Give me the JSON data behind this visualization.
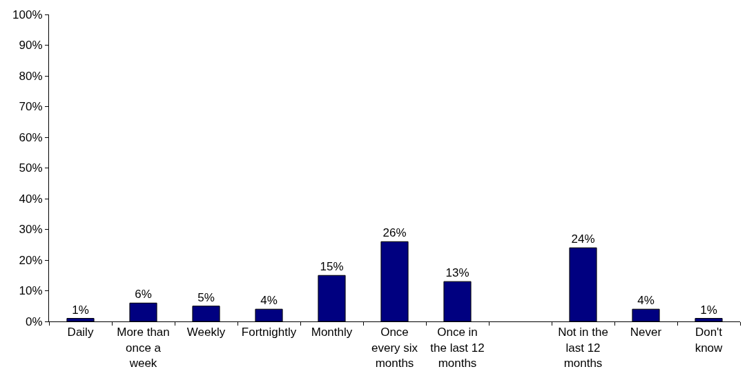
{
  "chart_data": {
    "type": "bar",
    "categories": [
      "Daily",
      "More than once a week",
      "Weekly",
      "Fortnightly",
      "Monthly",
      "Once every six months",
      "Once in the last 12 months",
      null,
      "Not in the last 12 months",
      "Never",
      "Don't know"
    ],
    "values": [
      1,
      6,
      5,
      4,
      15,
      26,
      13,
      null,
      24,
      4,
      1
    ],
    "value_labels": [
      "1%",
      "6%",
      "5%",
      "4%",
      "15%",
      "26%",
      "13%",
      null,
      "24%",
      "4%",
      "1%"
    ],
    "color": "#000080",
    "ylim": [
      0,
      100
    ],
    "yticks": [
      {
        "value": 0,
        "label": "0%"
      },
      {
        "value": 10,
        "label": "10%"
      },
      {
        "value": 20,
        "label": "20%"
      },
      {
        "value": 30,
        "label": "30%"
      },
      {
        "value": 40,
        "label": "40%"
      },
      {
        "value": 50,
        "label": "50%"
      },
      {
        "value": 60,
        "label": "60%"
      },
      {
        "value": 70,
        "label": "70%"
      },
      {
        "value": 80,
        "label": "80%"
      },
      {
        "value": 90,
        "label": "90%"
      },
      {
        "value": 100,
        "label": "100%"
      }
    ],
    "legend": false
  }
}
